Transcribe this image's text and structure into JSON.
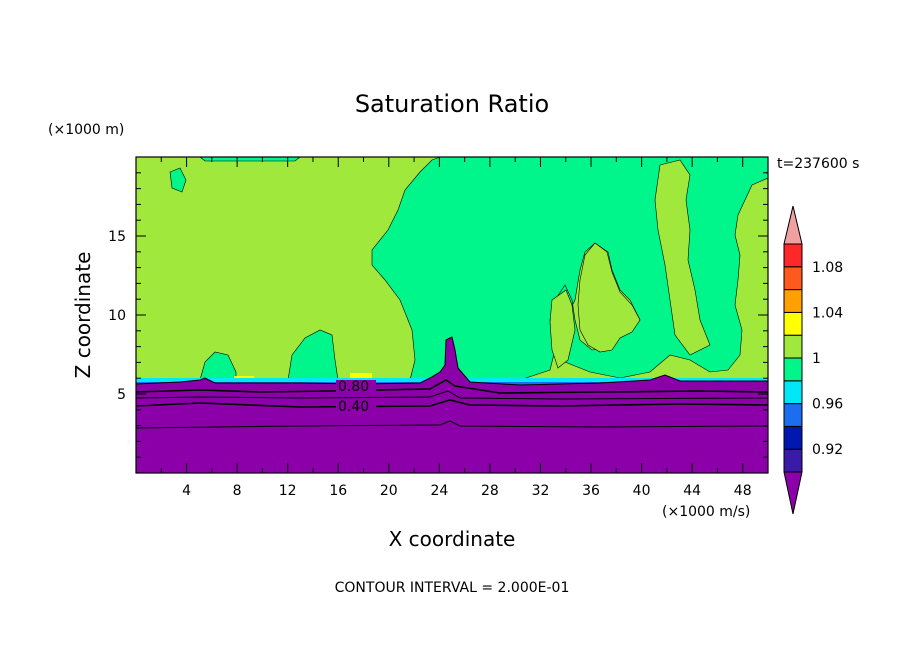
{
  "chart_data": {
    "type": "heatmap",
    "title": "Saturation Ratio",
    "xlabel": "X coordinate",
    "ylabel": "Z coordinate",
    "x_unit": "(×1000 m/s)",
    "y_unit": "(×1000 m)",
    "xlim": [
      0,
      50
    ],
    "ylim": [
      0,
      20
    ],
    "x_ticks": [
      "4",
      "8",
      "12",
      "16",
      "20",
      "24",
      "28",
      "32",
      "36",
      "40",
      "44",
      "48"
    ],
    "y_ticks": [
      "5",
      "10",
      "15"
    ],
    "time_label": "t=237600 s",
    "footer": "CONTOUR INTERVAL = 2.000E-01",
    "contour_labels": [
      "0.80",
      "0.40"
    ],
    "colorbar": {
      "tick_labels": [
        "1.08",
        "1.04",
        "1",
        "0.96",
        "0.92"
      ],
      "levels": [
        {
          "color": "#8b00a8"
        },
        {
          "color": "#3a1aa8"
        },
        {
          "color": "#0018b0"
        },
        {
          "color": "#1e6cf0"
        },
        {
          "color": "#00e8f8"
        },
        {
          "color": "#00f58a"
        },
        {
          "color": "#a0e83c"
        },
        {
          "color": "#ffff00"
        },
        {
          "color": "#ffa000"
        },
        {
          "color": "#ff5a1e"
        },
        {
          "color": "#ff2828"
        },
        {
          "color": "#f0a0a0"
        }
      ]
    },
    "colors": {
      "background_field": "#a0e83c",
      "supersat_region": "#00f58a",
      "low_region": "#8b00a8",
      "band_blue": "#1e6cf0",
      "spot_yellow": "#ffff00"
    }
  }
}
